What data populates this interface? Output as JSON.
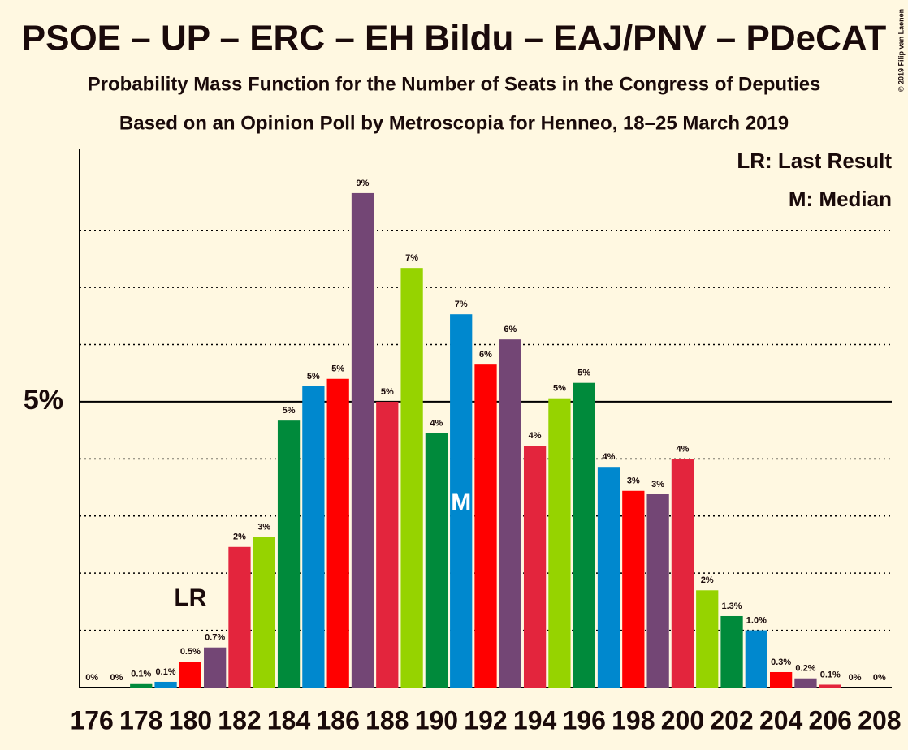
{
  "chart_data": {
    "type": "bar",
    "title": "PSOE – UP – ERC – EH Bildu – EAJ/PNV – PDeCAT",
    "subtitle": "Probability Mass Function for the Number of Seats in the Congress of Deputies",
    "source_note": "Based on an Opinion Poll by Metroscopia for Henneo, 18–25 March 2019",
    "copyright": "© 2019 Filip van Laenen",
    "x": [
      176,
      177,
      178,
      179,
      180,
      181,
      182,
      183,
      184,
      185,
      186,
      187,
      188,
      189,
      190,
      191,
      192,
      193,
      194,
      195,
      196,
      197,
      198,
      199,
      200,
      201,
      202,
      203,
      204,
      205,
      206,
      207,
      208
    ],
    "xlim": [
      175.5,
      208.5
    ],
    "xticks": [
      176,
      178,
      180,
      182,
      184,
      186,
      188,
      190,
      192,
      194,
      196,
      198,
      200,
      202,
      204,
      206,
      208
    ],
    "values": [
      0,
      0,
      0.06,
      0.1,
      0.45,
      0.7,
      2.46,
      2.63,
      4.67,
      5.27,
      5.4,
      8.65,
      5.0,
      7.34,
      4.45,
      6.53,
      5.65,
      6.09,
      4.23,
      5.06,
      5.33,
      3.86,
      3.44,
      3.38,
      4.0,
      1.7,
      1.25,
      1.0,
      0.27,
      0.16,
      0.05,
      0,
      0
    ],
    "value_labels": [
      "0%",
      "0%",
      "0.1%",
      "0.1%",
      "0.5%",
      "0.7%",
      "2%",
      "3%",
      "5%",
      "5%",
      "5%",
      "9%",
      "5%",
      "7%",
      "4%",
      "7%",
      "6%",
      "6%",
      "4%",
      "5%",
      "5%",
      "4%",
      "3%",
      "3%",
      "4%",
      "2%",
      "1.3%",
      "1.0%",
      "0.3%",
      "0.2%",
      "0.1%",
      "0%",
      "0%"
    ],
    "colors": [
      "#e3253d",
      "#96d300",
      "#008a3b",
      "#0088ce",
      "#ff0000",
      "#734675"
    ],
    "ylim": [
      0,
      9.43
    ],
    "yticks": [
      {
        "value": 5,
        "label": "5%"
      }
    ],
    "minor_yticks": [
      1,
      2,
      3,
      4,
      6,
      7,
      8
    ],
    "annotations": [
      {
        "label": "LR",
        "at": 180
      },
      {
        "label": "M",
        "at": 191
      }
    ],
    "legend": [
      "LR: Last Result",
      "M: Median"
    ]
  }
}
